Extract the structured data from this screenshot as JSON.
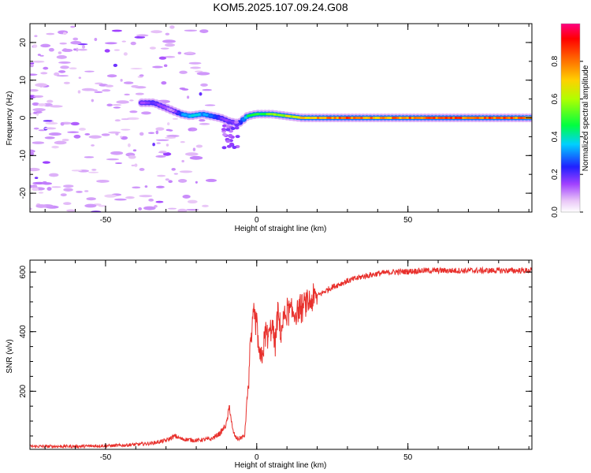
{
  "title": "KOM5.2025.107.09.24.G08",
  "chart_data": [
    {
      "type": "heatmap",
      "xlabel": "Height of straight line (km)",
      "ylabel": "Frequency (Hz)",
      "xlim": [
        -75,
        91
      ],
      "ylim": [
        -25,
        25
      ],
      "xticks": [
        -50,
        0,
        50
      ],
      "yticks": [
        -20,
        -10,
        0,
        10,
        20
      ],
      "colorbar": {
        "label": "Normalized spectral amplitude",
        "ticks": [
          "0.0",
          "0.2",
          "0.4",
          "0.6",
          "0.8"
        ],
        "range": [
          0,
          1
        ],
        "colormap": "rainbow (white-violet-blue-cyan-green-yellow-orange-red-magenta)"
      },
      "ridge": {
        "x": [
          -38,
          -34,
          -31,
          -28,
          -25,
          -22,
          -18,
          -15,
          -12,
          -9,
          -6,
          -3,
          0,
          5,
          10,
          15,
          20,
          30,
          40,
          50,
          60,
          70,
          80,
          91
        ],
        "frequency": [
          4,
          4,
          3,
          2,
          1,
          0.5,
          1,
          0.5,
          0,
          -1,
          -1.5,
          0.5,
          1,
          1,
          0.5,
          0,
          0,
          0,
          0,
          0,
          0,
          0,
          0,
          0
        ],
        "amplitude": [
          0.15,
          0.2,
          0.15,
          0.1,
          0.3,
          0.4,
          0.35,
          0.3,
          0.2,
          0.15,
          0.2,
          0.45,
          0.5,
          0.55,
          0.65,
          0.7,
          0.8,
          0.85,
          0.8,
          0.85,
          0.85,
          0.85,
          0.85,
          0.85
        ]
      }
    },
    {
      "type": "line",
      "xlabel": "Height of straight line (km)",
      "ylabel": "SNR (v/v)",
      "xlim": [
        -75,
        91
      ],
      "ylim": [
        5,
        640
      ],
      "xticks": [
        -50,
        0,
        50
      ],
      "yticks": [
        200,
        400,
        600
      ],
      "series": [
        {
          "color": "#e8302c",
          "x": [
            -75,
            -60,
            -45,
            -35,
            -30,
            -27,
            -25,
            -20,
            -15,
            -12,
            -10,
            -9,
            -8,
            -7,
            -6,
            -4,
            -3,
            -2,
            -1,
            0,
            1,
            2,
            3,
            4,
            5,
            6,
            7,
            8,
            9,
            10,
            12,
            15,
            20,
            25,
            30,
            35,
            40,
            45,
            50,
            55,
            60,
            70,
            80,
            91
          ],
          "y": [
            15,
            15,
            18,
            25,
            35,
            50,
            40,
            35,
            40,
            60,
            90,
            150,
            70,
            45,
            40,
            50,
            200,
            350,
            450,
            420,
            300,
            330,
            400,
            380,
            430,
            350,
            460,
            400,
            450,
            470,
            460,
            480,
            520,
            550,
            570,
            585,
            595,
            600,
            602,
            605,
            605,
            605,
            605,
            605
          ]
        }
      ]
    }
  ]
}
